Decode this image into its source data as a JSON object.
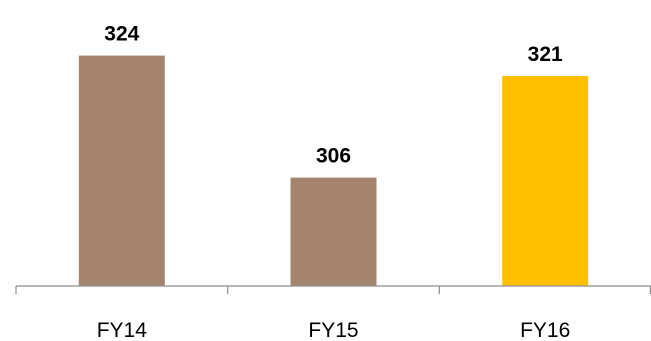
{
  "chart_data": {
    "type": "bar",
    "categories": [
      "FY14",
      "FY15",
      "FY16"
    ],
    "values": [
      324,
      306,
      321
    ],
    "data_labels": [
      "324",
      "306",
      "321"
    ],
    "bar_colors": [
      "#a5846f",
      "#a5846f",
      "#ffc000"
    ],
    "axis_color": "#8c8c8c",
    "ylim": [
      290,
      326
    ],
    "grid": false,
    "legend": "none"
  }
}
